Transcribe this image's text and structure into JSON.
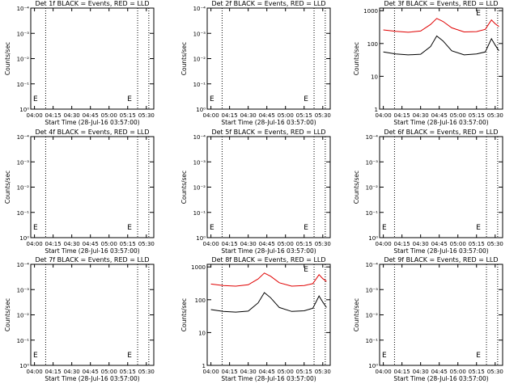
{
  "figure": {
    "background": "#ffffff",
    "colors": {
      "events": "#000000",
      "lld": "#e00000",
      "axis": "#000000"
    }
  },
  "chart_data": [
    {
      "type": "line",
      "title": "Det 1f BLACK = Events, RED = LLD",
      "xlabel": "Start Time (28-Jul-16 03:57:00)",
      "ylabel": "Counts/sec",
      "xticks": [
        "04:00",
        "04:15",
        "04:30",
        "04:45",
        "05:00",
        "05:15",
        "05:30"
      ],
      "yticks": [
        "10⁰",
        "10⁻¹",
        "10⁻²",
        "10⁻³",
        "10⁻⁴"
      ],
      "scale": "log",
      "ylim": [
        1,
        0.0001
      ],
      "vlines": [
        "04:09",
        "05:23",
        "05:32"
      ],
      "markers": [
        "E",
        "E"
      ],
      "series": []
    },
    {
      "type": "line",
      "title": "Det 2f BLACK = Events, RED = LLD",
      "xlabel": "Start Time (28-Jul-16 03:57:00)",
      "ylabel": "Counts/sec",
      "xticks": [
        "04:00",
        "04:15",
        "04:30",
        "04:45",
        "05:00",
        "05:15",
        "05:30"
      ],
      "yticks": [
        "10⁰",
        "10⁻¹",
        "10⁻²",
        "10⁻³",
        "10⁻⁴"
      ],
      "scale": "log",
      "ylim": [
        1,
        0.0001
      ],
      "vlines": [
        "04:09",
        "05:23",
        "05:32"
      ],
      "markers": [
        "E",
        "E"
      ],
      "series": []
    },
    {
      "type": "line",
      "title": "Det 3f BLACK = Events, RED = LLD",
      "xlabel": "Start Time (28-Jul-16 03:57:00)",
      "ylabel": "Counts/sec",
      "xticks": [
        "04:00",
        "04:15",
        "04:30",
        "04:45",
        "05:00",
        "05:15",
        "05:30"
      ],
      "yticks": [
        "1",
        "10",
        "100",
        "1000"
      ],
      "scale": "log",
      "ylim": [
        1,
        1200
      ],
      "vlines": [
        "04:09",
        "05:23",
        "05:32"
      ],
      "markers": [
        "E"
      ],
      "series": [
        {
          "color": "#000000",
          "x": [
            "04:00",
            "04:10",
            "04:20",
            "04:30",
            "04:38",
            "04:43",
            "04:48",
            "04:55",
            "05:05",
            "05:15",
            "05:22",
            "05:27",
            "05:30",
            "05:33"
          ],
          "values": [
            55,
            48,
            45,
            47,
            80,
            170,
            120,
            60,
            45,
            48,
            55,
            140,
            90,
            60
          ]
        },
        {
          "color": "#e00000",
          "x": [
            "04:00",
            "04:10",
            "04:20",
            "04:30",
            "04:38",
            "04:43",
            "04:48",
            "04:55",
            "05:05",
            "05:15",
            "05:22",
            "05:27",
            "05:30",
            "05:33"
          ],
          "values": [
            260,
            235,
            220,
            240,
            380,
            580,
            470,
            300,
            225,
            230,
            270,
            520,
            400,
            330
          ]
        }
      ]
    },
    {
      "type": "line",
      "title": "Det 4f BLACK = Events, RED = LLD",
      "xlabel": "Start Time (28-Jul-16 03:57:00)",
      "ylabel": "Counts/sec",
      "xticks": [
        "04:00",
        "04:15",
        "04:30",
        "04:45",
        "05:00",
        "05:15",
        "05:30"
      ],
      "yticks": [
        "10⁰",
        "10⁻¹",
        "10⁻²",
        "10⁻³",
        "10⁻⁴"
      ],
      "scale": "log",
      "ylim": [
        1,
        0.0001
      ],
      "vlines": [
        "04:09",
        "05:23",
        "05:32"
      ],
      "markers": [
        "E",
        "E"
      ],
      "series": []
    },
    {
      "type": "line",
      "title": "Det 5f BLACK = Events, RED = LLD",
      "xlabel": "Start Time (28-Jul-16 03:57:00)",
      "ylabel": "Counts/sec",
      "xticks": [
        "04:00",
        "04:15",
        "04:30",
        "04:45",
        "05:00",
        "05:15",
        "05:30"
      ],
      "yticks": [
        "10⁰",
        "10⁻¹",
        "10⁻²",
        "10⁻³",
        "10⁻⁴"
      ],
      "scale": "log",
      "ylim": [
        1,
        0.0001
      ],
      "vlines": [
        "04:09",
        "05:23",
        "05:32"
      ],
      "markers": [
        "E",
        "E"
      ],
      "series": []
    },
    {
      "type": "line",
      "title": "Det 6f BLACK = Events, RED = LLD",
      "xlabel": "Start Time (28-Jul-16 03:57:00)",
      "ylabel": "Counts/sec",
      "xticks": [
        "04:00",
        "04:15",
        "04:30",
        "04:45",
        "05:00",
        "05:15",
        "05:30"
      ],
      "yticks": [
        "10⁰",
        "10⁻¹",
        "10⁻²",
        "10⁻³",
        "10⁻⁴"
      ],
      "scale": "log",
      "ylim": [
        1,
        0.0001
      ],
      "vlines": [
        "04:09",
        "05:23",
        "05:32"
      ],
      "markers": [
        "E",
        "E"
      ],
      "series": []
    },
    {
      "type": "line",
      "title": "Det 7f BLACK = Events, RED = LLD",
      "xlabel": "Start Time (28-Jul-16 03:57:00)",
      "ylabel": "Counts/sec",
      "xticks": [
        "04:00",
        "04:15",
        "04:30",
        "04:45",
        "05:00",
        "05:15",
        "05:30"
      ],
      "yticks": [
        "10⁰",
        "10⁻¹",
        "10⁻²",
        "10⁻³",
        "10⁻⁴"
      ],
      "scale": "log",
      "ylim": [
        1,
        0.0001
      ],
      "vlines": [
        "04:09",
        "05:23",
        "05:32"
      ],
      "markers": [
        "E",
        "E"
      ],
      "series": []
    },
    {
      "type": "line",
      "title": "Det 8f BLACK = Events, RED = LLD",
      "xlabel": "Start Time (28-Jul-16 03:57:00)",
      "ylabel": "Counts/sec",
      "xticks": [
        "04:00",
        "04:15",
        "04:30",
        "04:45",
        "05:00",
        "05:15",
        "05:30"
      ],
      "yticks": [
        "1",
        "10",
        "100",
        "1000"
      ],
      "scale": "log",
      "ylim": [
        1,
        1200
      ],
      "vlines": [
        "04:09",
        "05:23",
        "05:32"
      ],
      "markers": [
        "E"
      ],
      "series": [
        {
          "color": "#000000",
          "x": [
            "04:00",
            "04:10",
            "04:20",
            "04:30",
            "04:38",
            "04:43",
            "04:48",
            "04:55",
            "05:05",
            "05:15",
            "05:22",
            "05:27",
            "05:30",
            "05:33"
          ],
          "values": [
            50,
            44,
            42,
            45,
            80,
            165,
            115,
            58,
            44,
            46,
            55,
            130,
            85,
            58
          ]
        },
        {
          "color": "#e00000",
          "x": [
            "04:00",
            "04:10",
            "04:20",
            "04:30",
            "04:38",
            "04:43",
            "04:48",
            "04:55",
            "05:05",
            "05:15",
            "05:22",
            "05:27",
            "05:30",
            "05:33"
          ],
          "values": [
            300,
            270,
            260,
            285,
            430,
            650,
            520,
            330,
            260,
            270,
            310,
            580,
            440,
            360
          ]
        }
      ]
    },
    {
      "type": "line",
      "title": "Det 9f BLACK = Events, RED = LLD",
      "xlabel": "Start Time (28-Jul-16 03:57:00)",
      "ylabel": "Counts/sec",
      "xticks": [
        "04:00",
        "04:15",
        "04:30",
        "04:45",
        "05:00",
        "05:15",
        "05:30"
      ],
      "yticks": [
        "10⁰",
        "10⁻¹",
        "10⁻²",
        "10⁻³",
        "10⁻⁴"
      ],
      "scale": "log",
      "ylim": [
        1,
        0.0001
      ],
      "vlines": [
        "04:09",
        "05:23",
        "05:32"
      ],
      "markers": [
        "E",
        "E"
      ],
      "series": []
    }
  ]
}
